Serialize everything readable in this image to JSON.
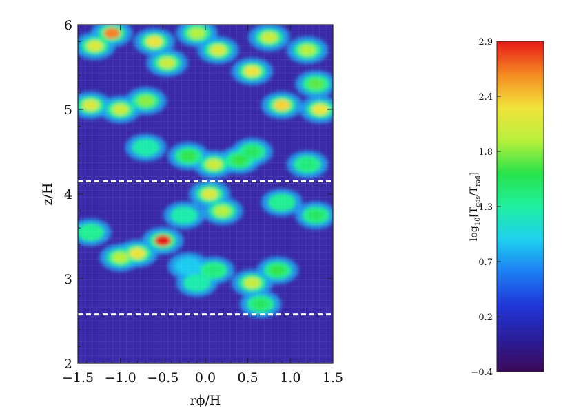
{
  "chart_data": {
    "type": "heatmap",
    "title": "",
    "xlabel": "rϕ/H",
    "ylabel": "z/H",
    "xlim": [
      -1.5,
      1.5
    ],
    "ylim": [
      2,
      6
    ],
    "x_ticks": [
      "−1.5",
      "−1.0",
      "−0.5",
      "0.0",
      "0.5",
      "1.0",
      "1.5"
    ],
    "y_ticks": [
      "2",
      "3",
      "4",
      "5",
      "6"
    ],
    "reference_lines_z": [
      4.15,
      2.58
    ],
    "colorbar": {
      "label": "log10[Tgas/Trad]",
      "range": [
        -0.4,
        2.9
      ],
      "ticks": [
        "−0.4",
        "0.2",
        "0.7",
        "1.3",
        "1.8",
        "2.4",
        "2.9"
      ],
      "colormap": "rainbow (purple → blue → cyan → green → yellow → red)"
    },
    "features": [
      {
        "x": -1.3,
        "z": 5.75,
        "value": 2.1
      },
      {
        "x": -1.1,
        "z": 5.9,
        "value": 2.6
      },
      {
        "x": -0.6,
        "z": 5.8,
        "value": 2.2
      },
      {
        "x": -0.45,
        "z": 5.55,
        "value": 2.0
      },
      {
        "x": -0.1,
        "z": 5.9,
        "value": 1.9
      },
      {
        "x": 0.15,
        "z": 5.7,
        "value": 2.1
      },
      {
        "x": 0.55,
        "z": 5.45,
        "value": 2.2
      },
      {
        "x": 0.75,
        "z": 5.85,
        "value": 2.0
      },
      {
        "x": 1.2,
        "z": 5.7,
        "value": 1.9
      },
      {
        "x": 1.3,
        "z": 5.3,
        "value": 1.7
      },
      {
        "x": -1.35,
        "z": 5.05,
        "value": 2.1
      },
      {
        "x": -1.0,
        "z": 5.0,
        "value": 2.0
      },
      {
        "x": -0.7,
        "z": 5.1,
        "value": 1.8
      },
      {
        "x": 0.9,
        "z": 5.05,
        "value": 2.3
      },
      {
        "x": 1.35,
        "z": 5.0,
        "value": 2.2
      },
      {
        "x": -0.7,
        "z": 4.55,
        "value": 1.2
      },
      {
        "x": -0.2,
        "z": 4.45,
        "value": 1.6
      },
      {
        "x": 0.1,
        "z": 4.35,
        "value": 2.0
      },
      {
        "x": 0.4,
        "z": 4.4,
        "value": 1.6
      },
      {
        "x": 0.55,
        "z": 4.5,
        "value": 1.5
      },
      {
        "x": 1.2,
        "z": 4.35,
        "value": 1.4
      },
      {
        "x": 0.05,
        "z": 4.0,
        "value": 2.1
      },
      {
        "x": 0.2,
        "z": 3.8,
        "value": 1.9
      },
      {
        "x": -0.25,
        "z": 3.75,
        "value": 1.2
      },
      {
        "x": 0.9,
        "z": 3.9,
        "value": 1.3
      },
      {
        "x": 1.3,
        "z": 3.75,
        "value": 1.5
      },
      {
        "x": -0.5,
        "z": 3.45,
        "value": 2.9
      },
      {
        "x": -0.8,
        "z": 3.3,
        "value": 2.2
      },
      {
        "x": -1.0,
        "z": 3.25,
        "value": 1.9
      },
      {
        "x": -1.35,
        "z": 3.55,
        "value": 1.3
      },
      {
        "x": -0.2,
        "z": 3.15,
        "value": 0.9
      },
      {
        "x": 0.1,
        "z": 3.1,
        "value": 1.4
      },
      {
        "x": 0.55,
        "z": 2.95,
        "value": 2.0
      },
      {
        "x": 0.85,
        "z": 3.1,
        "value": 1.6
      },
      {
        "x": 0.65,
        "z": 2.7,
        "value": 1.5
      },
      {
        "x": -0.1,
        "z": 2.95,
        "value": 1.2
      }
    ]
  }
}
